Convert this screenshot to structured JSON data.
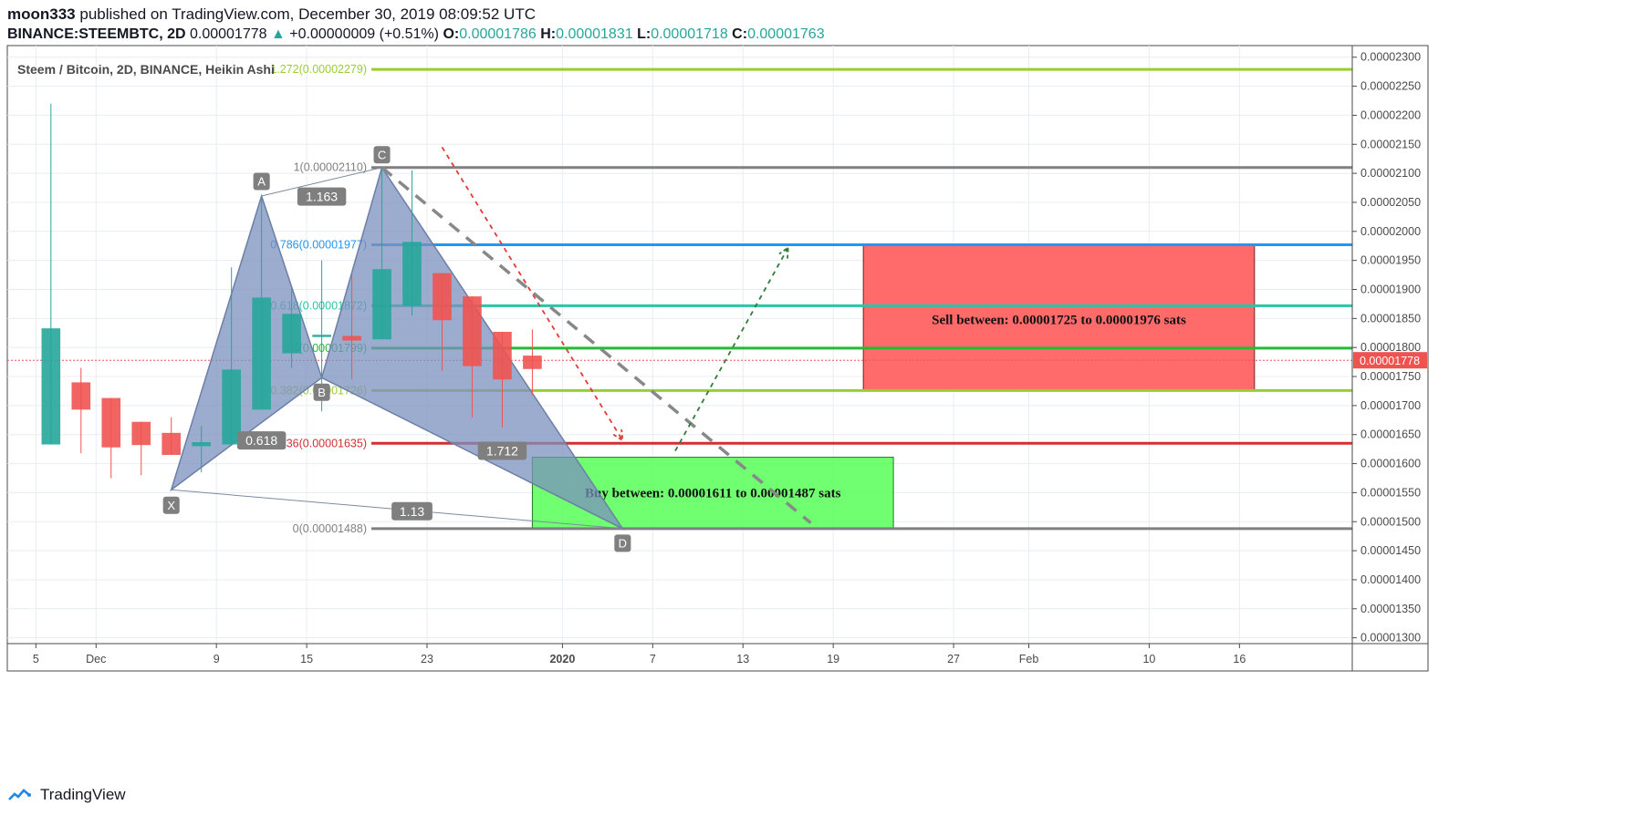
{
  "header": {
    "user": "moon333",
    "published_text": "published on TradingView.com, December 30, 2019 08:09:52 UTC",
    "symbol": "BINANCE:STEEMBTC, 2D",
    "last_price": "0.00001778",
    "change_arrow": "▲",
    "change": "+0.00000009 (+0.51%)",
    "o_label": "O:",
    "o_value": "0.00001786",
    "h_label": "H:",
    "h_value": "0.00001831",
    "l_label": "L:",
    "l_value": "0.00001718",
    "c_label": "C:",
    "c_value": "0.00001763"
  },
  "footer": {
    "brand": "TradingView",
    "logo_icon": "tradingview-logo-icon"
  },
  "colors": {
    "up": "#26a69a",
    "down": "#ef5350",
    "grid": "#e8edf2",
    "harmonic_fill": "#7b90bd",
    "harmonic_stroke": "#6b7fa6",
    "sell_box": "#ff6b6b",
    "buy_box": "#4cff4c",
    "price_line": "#ef5350"
  },
  "chart_data": {
    "type": "candlestick",
    "title": "Steem / Bitcoin, 2D, BINANCE, Heikin Ashi",
    "ylim": [
      1.29e-05,
      2.32e-05
    ],
    "y_ticks": [
      "0.00002300",
      "0.00002250",
      "0.00002200",
      "0.00002150",
      "0.00002100",
      "0.00002050",
      "0.00002000",
      "0.00001950",
      "0.00001900",
      "0.00001850",
      "0.00001800",
      "0.00001750",
      "0.00001700",
      "0.00001650",
      "0.00001600",
      "0.00001550",
      "0.00001500",
      "0.00001450",
      "0.00001400",
      "0.00001350",
      "0.00001300"
    ],
    "x_ticks": [
      {
        "label": "5",
        "t": -4
      },
      {
        "label": "Dec",
        "t": 0
      },
      {
        "label": "9",
        "t": 8
      },
      {
        "label": "15",
        "t": 14
      },
      {
        "label": "23",
        "t": 22
      },
      {
        "label": "2020",
        "t": 31
      },
      {
        "label": "7",
        "t": 37
      },
      {
        "label": "13",
        "t": 43
      },
      {
        "label": "19",
        "t": 49
      },
      {
        "label": "27",
        "t": 57
      },
      {
        "label": "Feb",
        "t": 62
      },
      {
        "label": "10",
        "t": 70
      },
      {
        "label": "16",
        "t": 76
      }
    ],
    "x_domain": [
      -5.9,
      83.5
    ],
    "candles": [
      {
        "t": -3,
        "o": 1.633e-05,
        "h": 2.22e-05,
        "l": 1.633e-05,
        "c": 1.833e-05
      },
      {
        "t": -1,
        "o": 1.74e-05,
        "h": 1.765e-05,
        "l": 1.618e-05,
        "c": 1.693e-05
      },
      {
        "t": 1,
        "o": 1.713e-05,
        "h": 1.713e-05,
        "l": 1.575e-05,
        "c": 1.628e-05
      },
      {
        "t": 3,
        "o": 1.672e-05,
        "h": 1.672e-05,
        "l": 1.58e-05,
        "c": 1.632e-05
      },
      {
        "t": 5,
        "o": 1.653e-05,
        "h": 1.68e-05,
        "l": 1.615e-05,
        "c": 1.615e-05
      },
      {
        "t": 7,
        "o": 1.63e-05,
        "h": 1.665e-05,
        "l": 1.585e-05,
        "c": 1.637e-05
      },
      {
        "t": 9,
        "o": 1.633e-05,
        "h": 1.938e-05,
        "l": 1.633e-05,
        "c": 1.762e-05
      },
      {
        "t": 11,
        "o": 1.693e-05,
        "h": 2.06e-05,
        "l": 1.693e-05,
        "c": 1.886e-05
      },
      {
        "t": 13,
        "o": 1.79e-05,
        "h": 1.905e-05,
        "l": 1.765e-05,
        "c": 1.858e-05
      },
      {
        "t": 15,
        "o": 1.818e-05,
        "h": 1.95e-05,
        "l": 1.69e-05,
        "c": 1.822e-05
      },
      {
        "t": 17,
        "o": 1.82e-05,
        "h": 1.925e-05,
        "l": 1.745e-05,
        "c": 1.812e-05
      },
      {
        "t": 19,
        "o": 1.814e-05,
        "h": 2.11e-05,
        "l": 1.814e-05,
        "c": 1.935e-05
      },
      {
        "t": 21,
        "o": 1.872e-05,
        "h": 2.105e-05,
        "l": 1.855e-05,
        "c": 1.982e-05
      },
      {
        "t": 23,
        "o": 1.928e-05,
        "h": 1.928e-05,
        "l": 1.76e-05,
        "c": 1.847e-05
      },
      {
        "t": 25,
        "o": 1.888e-05,
        "h": 1.888e-05,
        "l": 1.68e-05,
        "c": 1.768e-05
      },
      {
        "t": 27,
        "o": 1.827e-05,
        "h": 1.827e-05,
        "l": 1.662e-05,
        "c": 1.745e-05
      },
      {
        "t": 29,
        "o": 1.786e-05,
        "h": 1.831e-05,
        "l": 1.718e-05,
        "c": 1.763e-05
      }
    ],
    "current_price": {
      "value": 1.778e-05,
      "label": "0.00001778"
    },
    "fib_levels": [
      {
        "label": "1.272(0.00002279)",
        "value": 2.279e-05,
        "color": "#9acd32"
      },
      {
        "label": "1(0.00002110)",
        "value": 2.11e-05,
        "color": "#808080"
      },
      {
        "label": "0.786(0.00001977)",
        "value": 1.977e-05,
        "color": "#2196f3"
      },
      {
        "label": "0.618(0.00001872)",
        "value": 1.872e-05,
        "color": "#26c6a6"
      },
      {
        "label": "0.5(0.00001799)",
        "value": 1.799e-05,
        "color": "#22bb33"
      },
      {
        "label": "0.382(0.00001726)",
        "value": 1.726e-05,
        "color": "#9acd32"
      },
      {
        "label": "0.236(0.00001635)",
        "value": 1.635e-05,
        "color": "#d32f2f"
      },
      {
        "label": "0(0.00001488)",
        "value": 1.488e-05,
        "color": "#808080"
      }
    ],
    "fib_start_t": 18.3,
    "harmonic_points": [
      {
        "label": "X",
        "t": 5,
        "v": 1.555e-05
      },
      {
        "label": "A",
        "t": 11,
        "v": 2.061e-05
      },
      {
        "label": "B",
        "t": 15,
        "v": 1.748e-05
      },
      {
        "label": "C",
        "t": 19,
        "v": 2.11e-05
      },
      {
        "label": "D",
        "t": 35,
        "v": 1.488e-05
      }
    ],
    "ratios": [
      {
        "label": "1.163",
        "t": 15,
        "v": 2.06e-05
      },
      {
        "label": "0.618",
        "t": 11,
        "v": 1.64e-05
      },
      {
        "label": "1.712",
        "t": 27,
        "v": 1.622e-05
      },
      {
        "label": "1.13",
        "t": 21,
        "v": 1.518e-05
      }
    ],
    "sell_zone": {
      "label": "Sell between: 0.00001725 to 0.00001976 sats",
      "t0": 51,
      "t1": 77,
      "top": 1.977e-05,
      "bottom": 1.726e-05
    },
    "buy_zone": {
      "label": "Buy between: 0.00001611 to 0.00001487 sats",
      "t0": 29,
      "t1": 53,
      "top": 1.611e-05,
      "bottom": 1.488e-05
    },
    "arrows": [
      {
        "name": "red-projection",
        "t0": 23,
        "v0": 2.145e-05,
        "t1": 35,
        "v1": 1.64e-05,
        "color": "#e53935",
        "dash": "5,5"
      },
      {
        "name": "gray-projection",
        "t0": 19,
        "v0": 2.11e-05,
        "t1": 47.5,
        "v1": 1.498e-05,
        "color": "#888888",
        "dash": "14,10"
      },
      {
        "name": "green-projection",
        "t0": 38.5,
        "v0": 1.622e-05,
        "t1": 46,
        "v1": 1.972e-05,
        "color": "#2e7d32",
        "dash": "5,5"
      }
    ]
  }
}
